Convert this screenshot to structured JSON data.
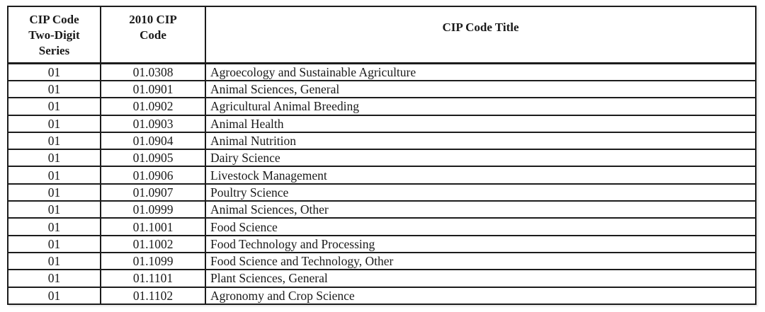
{
  "colors": {
    "border": "#1c1c1c",
    "text": "#1a1a1a",
    "background": "#ffffff"
  },
  "table": {
    "columns": [
      "CIP Code\nTwo-Digit\nSeries",
      "2010 CIP\nCode",
      "CIP Code Title"
    ],
    "rows": [
      [
        "01",
        "01.0308",
        "Agroecology and Sustainable Agriculture"
      ],
      [
        "01",
        "01.0901",
        "Animal Sciences, General"
      ],
      [
        "01",
        "01.0902",
        "Agricultural Animal Breeding"
      ],
      [
        "01",
        "01.0903",
        "Animal Health"
      ],
      [
        "01",
        "01.0904",
        "Animal Nutrition"
      ],
      [
        "01",
        "01.0905",
        "Dairy Science"
      ],
      [
        "01",
        "01.0906",
        "Livestock Management"
      ],
      [
        "01",
        "01.0907",
        "Poultry Science"
      ],
      [
        "01",
        "01.0999",
        "Animal Sciences, Other"
      ],
      [
        "01",
        "01.1001",
        "Food Science"
      ],
      [
        "01",
        "01.1002",
        "Food Technology and Processing"
      ],
      [
        "01",
        "01.1099",
        "Food Science and Technology, Other"
      ],
      [
        "01",
        "01.1101",
        "Plant Sciences, General"
      ],
      [
        "01",
        "01.1102",
        "Agronomy and Crop Science"
      ]
    ]
  }
}
